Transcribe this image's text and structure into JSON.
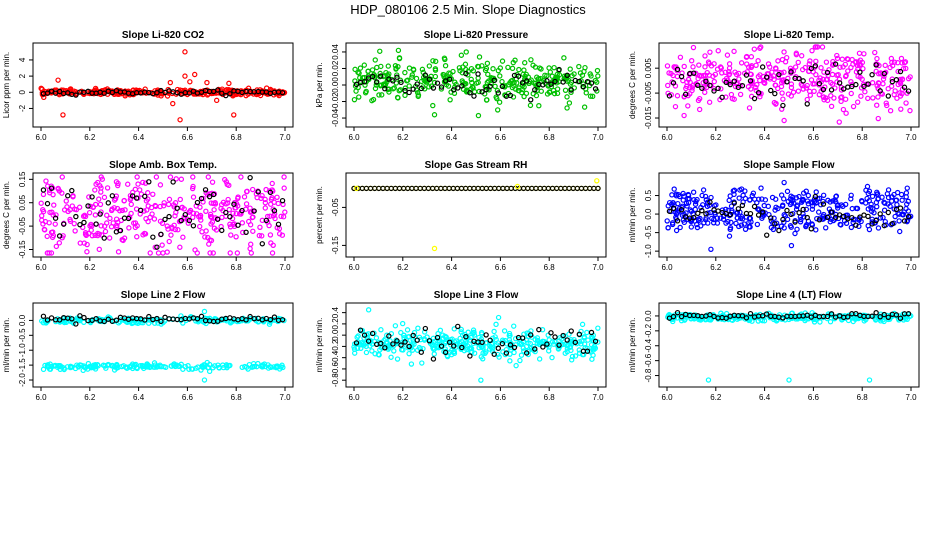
{
  "page_title": "HDP_080106  2.5 Min. Slope Diagnostics",
  "chart_data": [
    {
      "type": "scatter",
      "title": "Slope Li-820 CO2",
      "ylabel": "Licor ppm per min.",
      "color": "#ff0000",
      "xlim": [
        6.0,
        7.0
      ],
      "ylim": [
        -3.8,
        5.6
      ],
      "xticks": [
        6.0,
        6.2,
        6.4,
        6.6,
        6.8,
        7.0
      ],
      "xtick_labels": [
        "6.0",
        "6.2",
        "6.4",
        "6.6",
        "6.8",
        "7.0"
      ],
      "yticks": [
        -2,
        0,
        2,
        4
      ],
      "ytick_labels": [
        "-2",
        "0",
        "2",
        "4"
      ],
      "n_points": 320,
      "center": 0,
      "spread": 0.18,
      "black_center": 0,
      "black_spread": 0.12,
      "outliers": [
        [
          6.07,
          1.5
        ],
        [
          6.09,
          -2.8
        ],
        [
          6.53,
          1.2
        ],
        [
          6.54,
          -1.4
        ],
        [
          6.57,
          -3.4
        ],
        [
          6.59,
          5.0
        ],
        [
          6.59,
          2.0
        ],
        [
          6.61,
          1.3
        ],
        [
          6.63,
          2.2
        ],
        [
          6.68,
          1.2
        ],
        [
          6.72,
          -1.0
        ],
        [
          6.79,
          -2.8
        ],
        [
          6.77,
          1.1
        ]
      ]
    },
    {
      "type": "scatter",
      "title": "Slope Li-820 Pressure",
      "ylabel": "kPa per min.",
      "color": "#00c000",
      "xlim": [
        6.0,
        7.0
      ],
      "ylim": [
        -0.046,
        0.046
      ],
      "xticks": [
        6.0,
        6.2,
        6.4,
        6.6,
        6.8,
        7.0
      ],
      "xtick_labels": [
        "6.0",
        "6.2",
        "6.4",
        "6.6",
        "6.8",
        "7.0"
      ],
      "yticks": [
        -0.04,
        -0.02,
        0.0,
        0.02,
        0.04
      ],
      "ytick_labels": [
        "-0.04",
        "-0.02",
        "0.00",
        "0.02",
        "0.04"
      ],
      "n_points": 360,
      "center": 0.004,
      "spread": 0.012,
      "black_center": 0.0,
      "black_spread": 0.008,
      "outliers": [
        [
          6.33,
          -0.036
        ],
        [
          6.44,
          0.036
        ],
        [
          6.46,
          0.04
        ],
        [
          6.51,
          -0.037
        ],
        [
          6.66,
          0.03
        ]
      ]
    },
    {
      "type": "scatter",
      "title": "Slope Li-820 Temp.",
      "ylabel": "degrees C per min.",
      "color": "#ff00ff",
      "xlim": [
        6.0,
        7.0
      ],
      "ylim": [
        -0.017,
        0.0135
      ],
      "xticks": [
        6.0,
        6.2,
        6.4,
        6.6,
        6.8,
        7.0
      ],
      "xtick_labels": [
        "6.0",
        "6.2",
        "6.4",
        "6.6",
        "6.8",
        "7.0"
      ],
      "yticks": [
        -0.015,
        -0.005,
        0.005
      ],
      "ytick_labels": [
        "-0.015",
        "-0.005",
        "0.005"
      ],
      "n_points": 380,
      "center": 0.0005,
      "spread": 0.006,
      "black_center": -0.001,
      "black_spread": 0.004,
      "outliers": [
        [
          6.07,
          -0.014
        ],
        [
          6.21,
          0.012
        ],
        [
          6.48,
          -0.016
        ],
        [
          6.53,
          0.011
        ]
      ]
    },
    {
      "type": "scatter",
      "title": "Slope Amb. Box Temp.",
      "ylabel": "degrees C per min.",
      "color": "#ff00ff",
      "xlim": [
        6.0,
        7.0
      ],
      "ylim": [
        -0.165,
        0.16
      ],
      "xticks": [
        6.0,
        6.2,
        6.4,
        6.6,
        6.8,
        7.0
      ],
      "xtick_labels": [
        "6.0",
        "6.2",
        "6.4",
        "6.6",
        "6.8",
        "7.0"
      ],
      "yticks": [
        -0.15,
        -0.05,
        0.05,
        0.15
      ],
      "ytick_labels": [
        "-0.15",
        "-0.05",
        "0.05",
        "0.15"
      ],
      "n_points": 380,
      "center": 0.0,
      "spread": 0.08,
      "black_center": 0.0,
      "black_spread": 0.07,
      "outliers": []
    },
    {
      "type": "scatter",
      "title": "Slope Gas Stream RH",
      "ylabel": "percent per min.",
      "color": "#ffff00",
      "xlim": [
        6.0,
        7.0
      ],
      "ylim": [
        -0.17,
        0.03
      ],
      "xticks": [
        6.0,
        6.2,
        6.4,
        6.6,
        6.8,
        7.0
      ],
      "xtick_labels": [
        "6.0",
        "6.2",
        "6.4",
        "6.6",
        "6.8",
        "7.0"
      ],
      "yticks": [
        -0.15,
        -0.05
      ],
      "ytick_labels": [
        "-0.15",
        "-0.05"
      ],
      "n_points": 0,
      "center": 0.0,
      "spread": 0.0,
      "black_center": 0.0,
      "black_spread": 0.0,
      "flat_line": true,
      "flat_y": 0.0,
      "flat_n": 60,
      "outliers": [
        [
          6.01,
          0.0
        ],
        [
          6.33,
          -0.158
        ],
        [
          6.67,
          0.005
        ],
        [
          6.995,
          0.02
        ]
      ]
    },
    {
      "type": "scatter",
      "title": "Slope Sample Flow",
      "ylabel": "ml/min per min.",
      "color": "#0000ff",
      "xlim": [
        6.0,
        7.0
      ],
      "ylim": [
        -1.05,
        1.0
      ],
      "xticks": [
        6.0,
        6.2,
        6.4,
        6.6,
        6.8,
        7.0
      ],
      "xtick_labels": [
        "6.0",
        "6.2",
        "6.4",
        "6.6",
        "6.8",
        "7.0"
      ],
      "yticks": [
        -1.0,
        -0.5,
        0.0,
        0.5
      ],
      "ytick_labels": [
        "-1.0",
        "-0.5",
        "0.0",
        "0.5"
      ],
      "n_points": 380,
      "center": 0.0,
      "spread": 0.3,
      "bands": [
        0.35,
        -0.15
      ],
      "black_center": -0.1,
      "black_spread": 0.2,
      "outliers": [
        [
          6.18,
          -0.95
        ],
        [
          6.48,
          0.85
        ],
        [
          6.51,
          -0.85
        ]
      ]
    },
    {
      "type": "scatter",
      "title": "Slope Line 2 Flow",
      "ylabel": "ml/min per min.",
      "color": "#00ffff",
      "xlim": [
        6.0,
        7.0
      ],
      "ylim": [
        -2.1,
        0.45
      ],
      "xticks": [
        6.0,
        6.2,
        6.4,
        6.6,
        6.8,
        7.0
      ],
      "xtick_labels": [
        "6.0",
        "6.2",
        "6.4",
        "6.6",
        "6.8",
        "7.0"
      ],
      "yticks": [
        -2.0,
        -1.5,
        -1.0,
        -0.5,
        0.0
      ],
      "ytick_labels": [
        "-2.0",
        "-1.5",
        "-1.0",
        "-0.5",
        "0.0"
      ],
      "n_points": 380,
      "center": 0.0,
      "spread": 0.08,
      "bands": [
        0.0,
        -1.55
      ],
      "black_center": 0.05,
      "black_spread": 0.05,
      "outliers": [
        [
          6.67,
          -2.0
        ],
        [
          6.67,
          0.3
        ]
      ]
    },
    {
      "type": "scatter",
      "title": "Slope Line 3 Flow",
      "ylabel": "ml/min per min.",
      "color": "#00ffff",
      "xlim": [
        6.0,
        7.0
      ],
      "ylim": [
        -0.85,
        0.5
      ],
      "xticks": [
        6.0,
        6.2,
        6.4,
        6.6,
        6.8,
        7.0
      ],
      "xtick_labels": [
        "6.0",
        "6.2",
        "6.4",
        "6.6",
        "6.8",
        "7.0"
      ],
      "yticks": [
        -0.8,
        -0.6,
        -0.4,
        -0.2,
        0.0,
        0.2,
        0.4
      ],
      "ytick_labels": [
        "-0.8",
        "-0.6",
        "-0.4",
        "-0.2",
        "0.0",
        "0.2",
        "0.4"
      ],
      "n_points": 380,
      "center": -0.15,
      "spread": 0.13,
      "black_center": -0.12,
      "black_spread": 0.12,
      "outliers": [
        [
          6.06,
          0.45
        ],
        [
          6.52,
          -0.8
        ]
      ]
    },
    {
      "type": "scatter",
      "title": "Slope Line 4 (LT) Flow",
      "ylabel": "ml/min per min.",
      "color": "#00ffff",
      "xlim": [
        6.0,
        7.0
      ],
      "ylim": [
        -0.9,
        0.12
      ],
      "xticks": [
        6.0,
        6.2,
        6.4,
        6.6,
        6.8,
        7.0
      ],
      "xtick_labels": [
        "6.0",
        "6.2",
        "6.4",
        "6.6",
        "6.8",
        "7.0"
      ],
      "yticks": [
        -0.8,
        -0.6,
        -0.4,
        -0.2,
        0.0
      ],
      "ytick_labels": [
        "-0.8",
        "-0.6",
        "-0.4",
        "-0.2",
        "0.0"
      ],
      "n_points": 300,
      "center": -0.02,
      "spread": 0.025,
      "black_center": 0.0,
      "black_spread": 0.02,
      "outliers": [
        [
          6.17,
          -0.86
        ],
        [
          6.5,
          -0.86
        ],
        [
          6.83,
          -0.86
        ]
      ]
    }
  ]
}
